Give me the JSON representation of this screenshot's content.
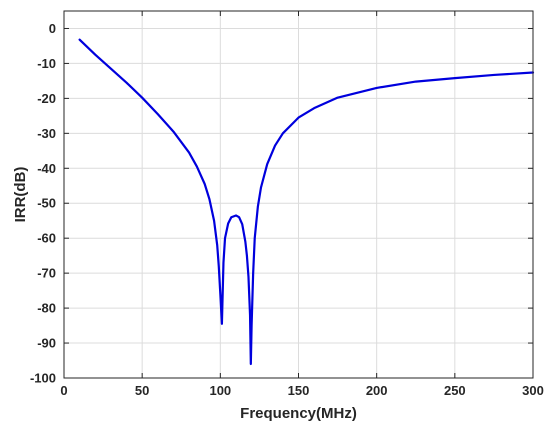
{
  "chart_data": {
    "type": "line",
    "title": "",
    "xlabel": "Frequency(MHz)",
    "ylabel": "IRR(dB)",
    "xlim": [
      0,
      300
    ],
    "ylim": [
      -100,
      5
    ],
    "xticks": [
      0,
      50,
      100,
      150,
      200,
      250,
      300
    ],
    "yticks": [
      0,
      -10,
      -20,
      -30,
      -40,
      -50,
      -60,
      -70,
      -80,
      -90,
      -100
    ],
    "grid": true,
    "legend": "none",
    "series": [
      {
        "color": "#0000dd",
        "x": [
          10,
          20,
          30,
          40,
          50,
          60,
          70,
          80,
          85,
          90,
          93,
          96,
          98,
          99,
          100,
          101,
          102,
          103,
          105,
          107,
          110,
          112,
          114,
          116,
          117,
          118,
          119,
          119.5,
          120,
          121,
          122,
          124,
          126,
          130,
          135,
          140,
          150,
          160,
          175,
          200,
          225,
          250,
          275,
          300
        ],
        "y": [
          -3.2,
          -7.5,
          -11.5,
          -15.5,
          -19.8,
          -24.5,
          -29.5,
          -35.5,
          -39.5,
          -44.5,
          -48.8,
          -55,
          -62,
          -68,
          -76,
          -84.5,
          -67,
          -60,
          -55.8,
          -54,
          -53.5,
          -54,
          -56,
          -61,
          -65,
          -71,
          -82,
          -96,
          -85,
          -70,
          -60,
          -51,
          -45.5,
          -38.8,
          -33.5,
          -30,
          -25.5,
          -22.8,
          -19.8,
          -17,
          -15.2,
          -14.2,
          -13.3,
          -12.6
        ]
      }
    ]
  }
}
